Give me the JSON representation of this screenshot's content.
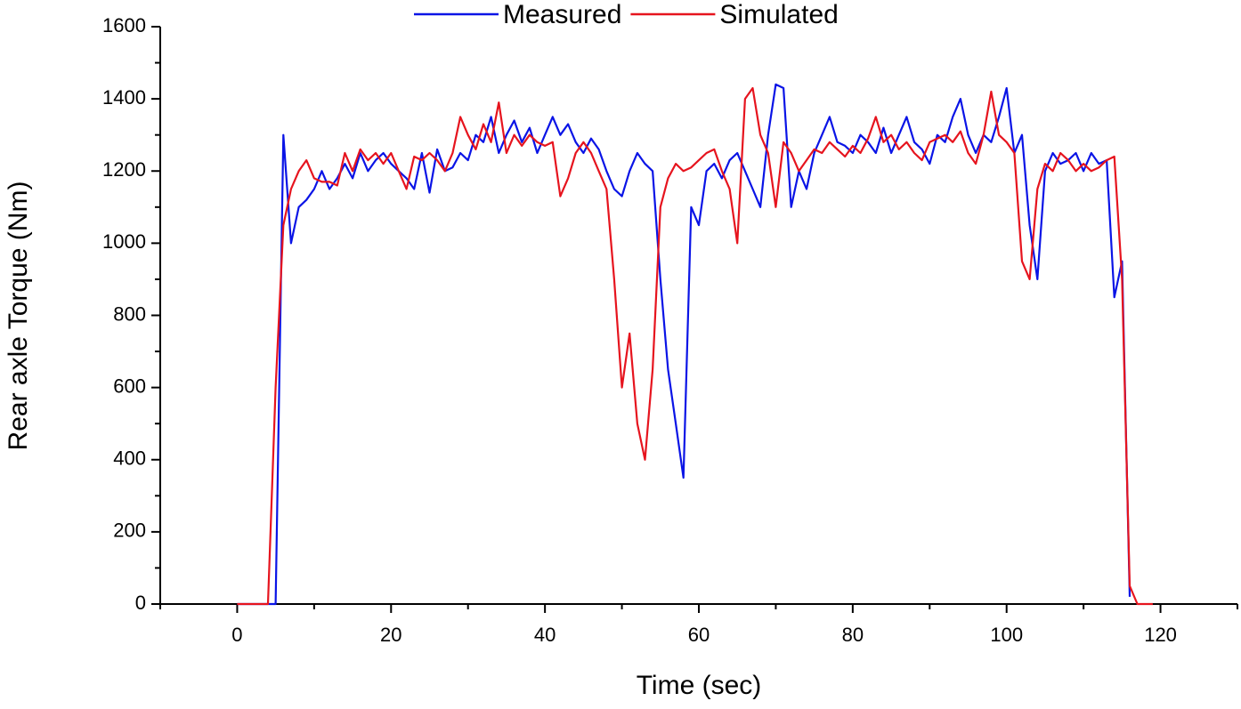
{
  "chart_data": {
    "type": "line",
    "x_label": "Time (sec)",
    "y_label": "Rear axle Torque (Nm)",
    "x": [
      0,
      1,
      2,
      3,
      4,
      5,
      6,
      7,
      8,
      9,
      10,
      11,
      12,
      13,
      14,
      15,
      16,
      17,
      18,
      19,
      20,
      21,
      22,
      23,
      24,
      25,
      26,
      27,
      28,
      29,
      30,
      31,
      32,
      33,
      34,
      35,
      36,
      37,
      38,
      39,
      40,
      41,
      42,
      43,
      44,
      45,
      46,
      47,
      48,
      49,
      50,
      51,
      52,
      53,
      54,
      55,
      56,
      57,
      58,
      59,
      60,
      61,
      62,
      63,
      64,
      65,
      66,
      67,
      68,
      69,
      70,
      71,
      72,
      73,
      74,
      75,
      76,
      77,
      78,
      79,
      80,
      81,
      82,
      83,
      84,
      85,
      86,
      87,
      88,
      89,
      90,
      91,
      92,
      93,
      94,
      95,
      96,
      97,
      98,
      99,
      100,
      101,
      102,
      103,
      104,
      105,
      106,
      107,
      108,
      109,
      110,
      111,
      112,
      113,
      114,
      115,
      116,
      117,
      118,
      119
    ],
    "series": [
      {
        "name": "Measured",
        "color": "#0a14e6",
        "values": [
          0,
          0,
          0,
          0,
          0,
          0,
          1300,
          1000,
          1100,
          1120,
          1150,
          1200,
          1150,
          1180,
          1220,
          1180,
          1250,
          1200,
          1230,
          1250,
          1220,
          1200,
          1180,
          1150,
          1250,
          1140,
          1260,
          1200,
          1210,
          1250,
          1230,
          1300,
          1280,
          1350,
          1250,
          1300,
          1340,
          1280,
          1320,
          1250,
          1300,
          1350,
          1300,
          1330,
          1280,
          1250,
          1290,
          1260,
          1200,
          1150,
          1130,
          1200,
          1250,
          1220,
          1200,
          900,
          650,
          500,
          350,
          1100,
          1050,
          1200,
          1220,
          1180,
          1230,
          1250,
          1200,
          1150,
          1100,
          1300,
          1440,
          1430,
          1100,
          1200,
          1150,
          1250,
          1300,
          1350,
          1280,
          1270,
          1250,
          1300,
          1280,
          1250,
          1320,
          1250,
          1300,
          1350,
          1280,
          1260,
          1220,
          1300,
          1280,
          1350,
          1400,
          1300,
          1250,
          1300,
          1280,
          1350,
          1430,
          1250,
          1300,
          1050,
          900,
          1200,
          1250,
          1220,
          1230,
          1250,
          1200,
          1250,
          1220,
          1230,
          850,
          950,
          20,
          null,
          null,
          null
        ]
      },
      {
        "name": "Simulated",
        "color": "#e6141e",
        "values": [
          0,
          0,
          0,
          0,
          0,
          600,
          1050,
          1150,
          1200,
          1230,
          1180,
          1170,
          1170,
          1160,
          1250,
          1200,
          1260,
          1230,
          1250,
          1220,
          1250,
          1200,
          1150,
          1240,
          1230,
          1250,
          1230,
          1200,
          1250,
          1350,
          1300,
          1260,
          1330,
          1280,
          1390,
          1250,
          1300,
          1270,
          1300,
          1280,
          1270,
          1280,
          1130,
          1180,
          1250,
          1280,
          1250,
          1200,
          1150,
          900,
          600,
          750,
          500,
          400,
          650,
          1100,
          1180,
          1220,
          1200,
          1210,
          1230,
          1250,
          1260,
          1200,
          1150,
          1000,
          1400,
          1430,
          1300,
          1250,
          1100,
          1280,
          1250,
          1200,
          1230,
          1260,
          1250,
          1280,
          1260,
          1240,
          1270,
          1250,
          1290,
          1350,
          1280,
          1300,
          1260,
          1280,
          1250,
          1230,
          1280,
          1290,
          1300,
          1280,
          1310,
          1250,
          1220,
          1300,
          1420,
          1300,
          1280,
          1250,
          950,
          900,
          1150,
          1220,
          1200,
          1250,
          1230,
          1200,
          1220,
          1200,
          1210,
          1230,
          1240,
          900,
          50,
          0,
          0,
          0
        ]
      }
    ],
    "xlim": [
      -10,
      130
    ],
    "xticks": [
      0,
      20,
      40,
      60,
      80,
      100,
      120
    ],
    "ylim": [
      0,
      1600
    ],
    "yticks": [
      0,
      200,
      400,
      600,
      800,
      1000,
      1200,
      1400,
      1600
    ],
    "legend": "top"
  }
}
